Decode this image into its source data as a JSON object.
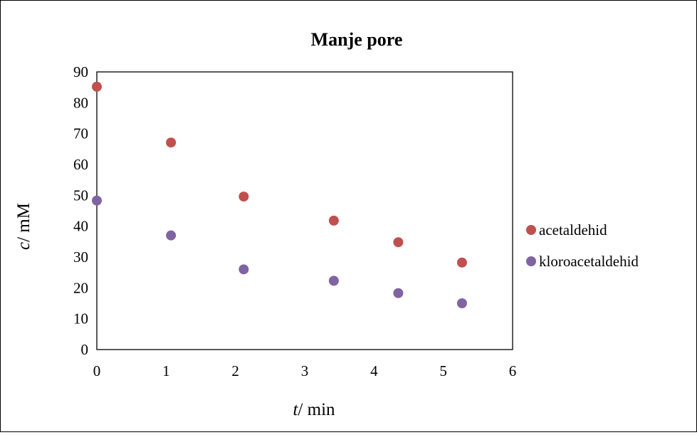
{
  "chart_data": {
    "type": "scatter",
    "title": "Manje pore",
    "xlabel_var": "t",
    "xlabel_unit": "/ min",
    "ylabel_var": "c",
    "ylabel_unit": "/ mM",
    "xlim": [
      0,
      6
    ],
    "ylim": [
      0,
      90
    ],
    "xticks": [
      "0",
      "1",
      "2",
      "3",
      "4",
      "5",
      "6"
    ],
    "yticks": [
      "0",
      "10",
      "20",
      "30",
      "40",
      "50",
      "60",
      "70",
      "80",
      "90"
    ],
    "grid": false,
    "legend_position": "right",
    "series": [
      {
        "name": "acetaldehid",
        "color": "#c0504d",
        "x": [
          0,
          1.07,
          2.12,
          3.42,
          4.35,
          5.27
        ],
        "y": [
          85.2,
          67.1,
          49.6,
          41.8,
          34.8,
          28.2
        ]
      },
      {
        "name": "kloroacetaldehid",
        "color": "#8064a2",
        "x": [
          0,
          1.07,
          2.12,
          3.42,
          4.35,
          5.27
        ],
        "y": [
          48.3,
          37.0,
          26.0,
          22.3,
          18.3,
          15.0
        ]
      }
    ]
  }
}
